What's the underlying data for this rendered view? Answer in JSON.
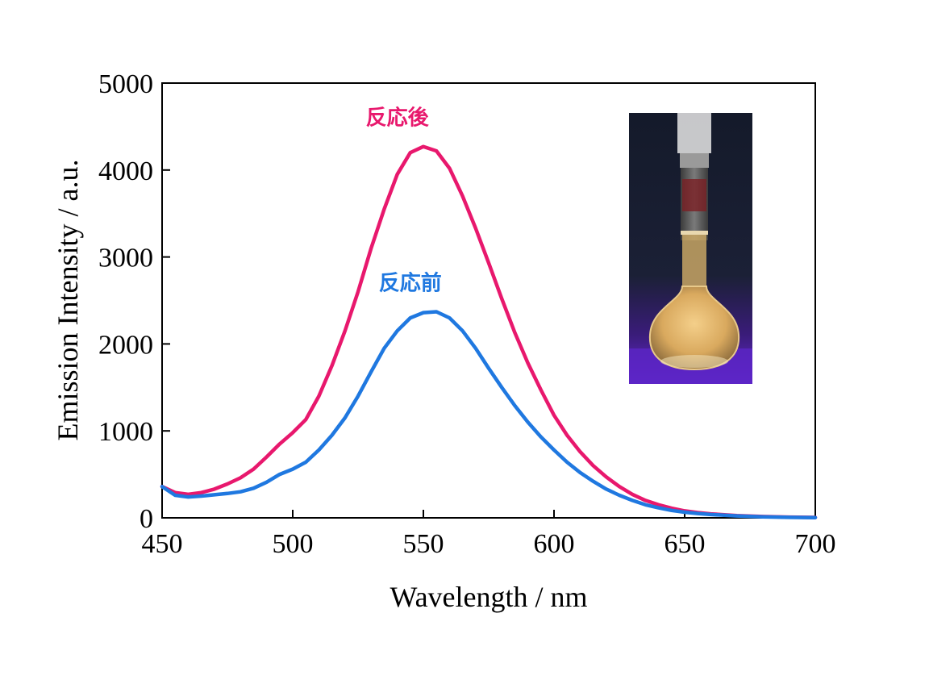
{
  "chart_data": {
    "type": "line",
    "title": "",
    "xlabel": "Wavelength / nm",
    "ylabel": "Emission Intensity / a.u.",
    "xlim": [
      450,
      700
    ],
    "ylim": [
      0,
      5000
    ],
    "x_ticks": [
      450,
      500,
      550,
      600,
      650,
      700
    ],
    "y_ticks": [
      0,
      1000,
      2000,
      3000,
      4000,
      5000
    ],
    "grid": false,
    "series": [
      {
        "name": "反応後",
        "color": "#e8186d",
        "x": [
          450,
          455,
          460,
          465,
          470,
          475,
          480,
          485,
          490,
          495,
          500,
          505,
          510,
          515,
          520,
          525,
          530,
          535,
          540,
          545,
          550,
          555,
          560,
          565,
          570,
          575,
          580,
          585,
          590,
          595,
          600,
          605,
          610,
          615,
          620,
          625,
          630,
          635,
          640,
          645,
          650,
          655,
          660,
          670,
          680,
          690,
          700
        ],
        "values": [
          360,
          290,
          270,
          290,
          330,
          390,
          460,
          560,
          700,
          850,
          980,
          1130,
          1400,
          1750,
          2150,
          2600,
          3100,
          3550,
          3950,
          4200,
          4270,
          4220,
          4020,
          3700,
          3330,
          2930,
          2520,
          2130,
          1780,
          1470,
          1180,
          950,
          760,
          600,
          470,
          360,
          270,
          200,
          150,
          110,
          80,
          60,
          45,
          25,
          15,
          8,
          5
        ]
      },
      {
        "name": "反応前",
        "color": "#1f78e0",
        "x": [
          450,
          455,
          460,
          465,
          470,
          475,
          480,
          485,
          490,
          495,
          500,
          505,
          510,
          515,
          520,
          525,
          530,
          535,
          540,
          545,
          550,
          555,
          560,
          565,
          570,
          575,
          580,
          585,
          590,
          595,
          600,
          605,
          610,
          615,
          620,
          625,
          630,
          635,
          640,
          645,
          650,
          655,
          660,
          670,
          680,
          690,
          700
        ],
        "values": [
          360,
          260,
          240,
          250,
          265,
          280,
          300,
          340,
          410,
          500,
          560,
          640,
          780,
          950,
          1150,
          1400,
          1680,
          1950,
          2150,
          2300,
          2360,
          2370,
          2300,
          2150,
          1950,
          1720,
          1500,
          1290,
          1100,
          930,
          780,
          640,
          520,
          420,
          330,
          260,
          200,
          150,
          115,
          85,
          65,
          50,
          38,
          22,
          12,
          6,
          3
        ]
      }
    ],
    "annotations": [
      {
        "text": "反応後",
        "color": "#e8186d",
        "x": 540,
        "y": 4520
      },
      {
        "text": "反応前",
        "color": "#1f78e0",
        "x": 545,
        "y": 2620
      }
    ],
    "inset_image": "volumetric-flask-photo"
  }
}
